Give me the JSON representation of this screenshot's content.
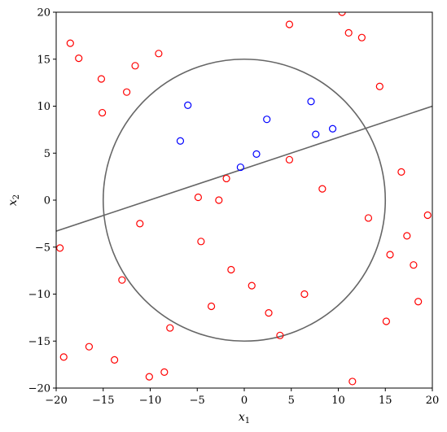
{
  "chart_data": {
    "type": "scatter",
    "title": "",
    "xlabel": "x",
    "xlabel_sub": "1",
    "ylabel": "x",
    "ylabel_sub": "2",
    "xlim": [
      -20,
      20
    ],
    "ylim": [
      -20,
      20
    ],
    "grid": false,
    "x_ticks": [
      -20,
      -15,
      -10,
      -5,
      0,
      5,
      10,
      15,
      20
    ],
    "y_ticks": [
      -20,
      -15,
      -10,
      -5,
      0,
      5,
      10,
      15,
      20
    ],
    "series": [
      {
        "color": "#ff0000",
        "points": [
          [
            -18.5,
            16.7
          ],
          [
            -17.6,
            15.1
          ],
          [
            -15.2,
            12.9
          ],
          [
            -15.1,
            9.3
          ],
          [
            -12.5,
            11.5
          ],
          [
            -11.6,
            14.3
          ],
          [
            -9.1,
            15.6
          ],
          [
            4.8,
            18.7
          ],
          [
            10.4,
            20.0
          ],
          [
            11.1,
            17.8
          ],
          [
            12.5,
            17.3
          ],
          [
            14.4,
            12.1
          ],
          [
            4.8,
            4.3
          ],
          [
            -1.9,
            2.3
          ],
          [
            8.3,
            1.2
          ],
          [
            -4.9,
            0.3
          ],
          [
            -2.7,
            0.0
          ],
          [
            16.7,
            3.0
          ],
          [
            13.2,
            -1.9
          ],
          [
            19.5,
            -1.6
          ],
          [
            -19.6,
            -5.1
          ],
          [
            -11.1,
            -2.5
          ],
          [
            -4.6,
            -4.4
          ],
          [
            17.3,
            -3.8
          ],
          [
            15.5,
            -5.8
          ],
          [
            18.0,
            -6.9
          ],
          [
            -13.0,
            -8.5
          ],
          [
            -1.4,
            -7.4
          ],
          [
            0.8,
            -9.1
          ],
          [
            6.4,
            -10.0
          ],
          [
            18.5,
            -10.8
          ],
          [
            -3.5,
            -11.3
          ],
          [
            2.6,
            -12.0
          ],
          [
            15.1,
            -12.9
          ],
          [
            -7.9,
            -13.6
          ],
          [
            3.8,
            -14.4
          ],
          [
            -19.2,
            -16.7
          ],
          [
            -16.5,
            -15.6
          ],
          [
            -13.8,
            -17.0
          ],
          [
            -10.1,
            -18.8
          ],
          [
            -8.5,
            -18.3
          ],
          [
            11.5,
            -19.3
          ]
        ]
      },
      {
        "color": "#0000ff",
        "points": [
          [
            -6.0,
            10.1
          ],
          [
            7.1,
            10.5
          ],
          [
            2.4,
            8.6
          ],
          [
            -6.8,
            6.3
          ],
          [
            7.6,
            7.0
          ],
          [
            9.4,
            7.6
          ],
          [
            1.3,
            4.9
          ],
          [
            -0.4,
            3.5
          ]
        ]
      }
    ],
    "circle": {
      "center": [
        0,
        0
      ],
      "radius": 15,
      "color": "#666666"
    },
    "line": {
      "points": [
        [
          -20,
          -3.3
        ],
        [
          20,
          10.0
        ]
      ],
      "color": "#666666"
    }
  }
}
